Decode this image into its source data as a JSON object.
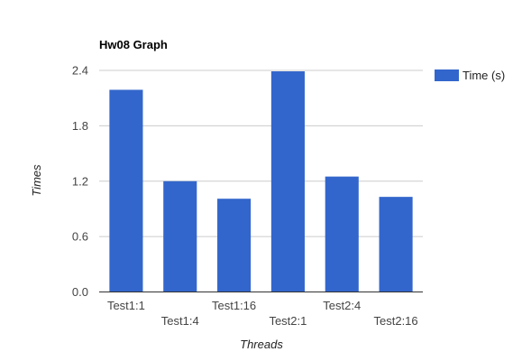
{
  "chart_data": {
    "type": "bar",
    "title": "Hw08 Graph",
    "xlabel": "Threads",
    "ylabel": "Times",
    "categories": [
      "Test1:1",
      "Test1:4",
      "Test1:16",
      "Test2:1",
      "Test2:4",
      "Test2:16"
    ],
    "series": [
      {
        "name": "Time (s)",
        "values": [
          2.19,
          1.2,
          1.01,
          2.39,
          1.25,
          1.03
        ],
        "color": "#3366cc"
      }
    ],
    "ylim": [
      0,
      2.4
    ],
    "yticks": [
      "0.0",
      "0.6",
      "1.2",
      "1.8",
      "2.4"
    ],
    "grid": true,
    "legend": "right"
  }
}
